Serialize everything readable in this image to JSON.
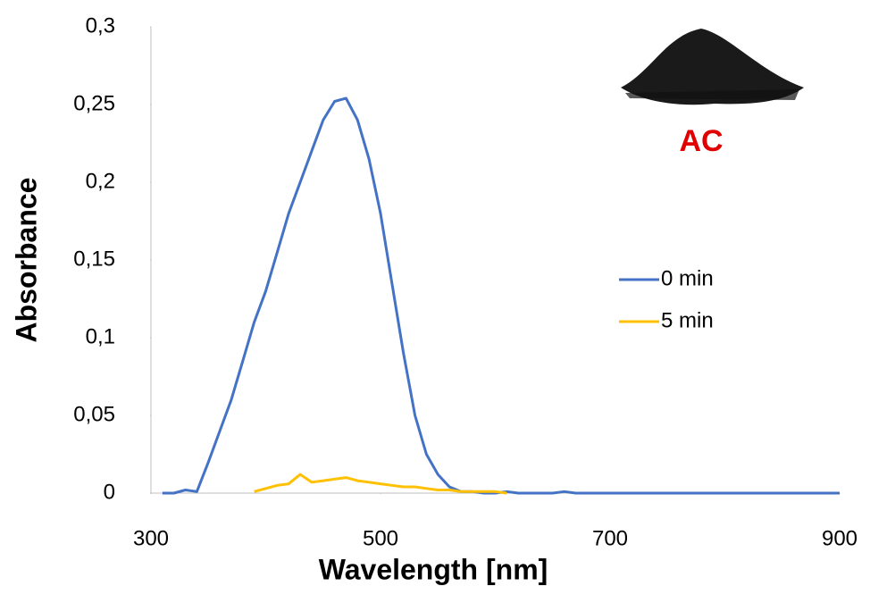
{
  "chart_data": {
    "type": "line",
    "x_label": "Wavelength [nm]",
    "y_label": "Absorbance",
    "annotation": "AC",
    "x": [
      310,
      320,
      330,
      340,
      350,
      360,
      370,
      380,
      390,
      400,
      410,
      420,
      430,
      440,
      450,
      460,
      470,
      480,
      490,
      500,
      510,
      520,
      530,
      540,
      550,
      560,
      570,
      580,
      590,
      600,
      610,
      620,
      630,
      640,
      650,
      660,
      670,
      680,
      690,
      700,
      710,
      720,
      730,
      740,
      750,
      760,
      770,
      780,
      790,
      800,
      810,
      820,
      830,
      840,
      850,
      860,
      870,
      880,
      890,
      900
    ],
    "series": [
      {
        "name": "0 min",
        "color": "#4472c4",
        "values": [
          0,
          0,
          0.002,
          0.001,
          0.02,
          0.04,
          0.06,
          0.085,
          0.11,
          0.13,
          0.155,
          0.18,
          0.2,
          0.22,
          0.24,
          0.252,
          0.254,
          0.24,
          0.215,
          0.18,
          0.135,
          0.09,
          0.05,
          0.025,
          0.012,
          0.004,
          0.001,
          0.001,
          0,
          0,
          0.001,
          0,
          0,
          0,
          0,
          0.001,
          0,
          0,
          0,
          0,
          0,
          0,
          0,
          0,
          0,
          0,
          0,
          0,
          0,
          0,
          0,
          0,
          0,
          0,
          0,
          0,
          0,
          0,
          0,
          0
        ]
      },
      {
        "name": "5 min",
        "color": "#ffc000",
        "values": [
          null,
          null,
          null,
          null,
          null,
          null,
          null,
          null,
          0.001,
          0.003,
          0.005,
          0.006,
          0.012,
          0.007,
          0.008,
          0.009,
          0.01,
          0.008,
          0.007,
          0.006,
          0.005,
          0.004,
          0.004,
          0.003,
          0.002,
          0.002,
          0.001,
          0.001,
          0.001,
          0.001,
          0,
          null,
          null,
          null,
          null,
          null,
          null,
          null,
          null,
          null,
          null,
          null,
          null,
          null,
          null,
          null,
          null,
          null,
          null,
          null,
          null,
          null,
          null,
          null,
          null,
          null,
          null,
          null,
          null,
          null
        ]
      }
    ],
    "xlim": [
      300,
      900
    ],
    "ylim": [
      0,
      0.3
    ],
    "xticks": [
      300,
      500,
      700,
      900
    ],
    "yticks": [
      0,
      {
        "value": 0.05,
        "label": "0,05"
      },
      {
        "value": 0.1,
        "label": "0,1"
      },
      {
        "value": 0.15,
        "label": "0,15"
      },
      {
        "value": 0.2,
        "label": "0,2"
      },
      {
        "value": 0.25,
        "label": "0,25"
      },
      {
        "value": 0.3,
        "label": "0,3"
      }
    ],
    "grid": false
  }
}
